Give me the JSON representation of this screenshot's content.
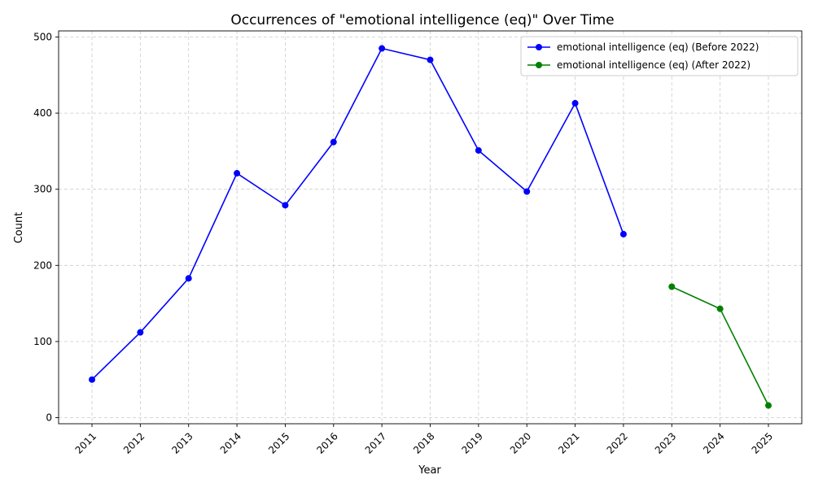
{
  "chart_data": {
    "type": "line",
    "title": "Occurrences of \"emotional intelligence (eq)\" Over Time",
    "xlabel": "Year",
    "ylabel": "Count",
    "x": [
      "2011",
      "2012",
      "2013",
      "2014",
      "2015",
      "2016",
      "2017",
      "2018",
      "2019",
      "2020",
      "2021",
      "2022",
      "2023",
      "2024",
      "2025"
    ],
    "ylim": [
      -8,
      508
    ],
    "yticks": [
      0,
      100,
      200,
      300,
      400,
      500
    ],
    "grid": true,
    "legend_position": "top-right",
    "series": [
      {
        "name": "emotional intelligence (eq) (Before 2022)",
        "color": "#0000ff",
        "x": [
          "2011",
          "2012",
          "2013",
          "2014",
          "2015",
          "2016",
          "2017",
          "2018",
          "2019",
          "2020",
          "2021",
          "2022"
        ],
        "values": [
          50,
          112,
          183,
          321,
          279,
          362,
          485,
          470,
          351,
          297,
          413,
          241
        ]
      },
      {
        "name": "emotional intelligence (eq) (After 2022)",
        "color": "#008000",
        "x": [
          "2023",
          "2024",
          "2025"
        ],
        "values": [
          172,
          143,
          16
        ]
      }
    ]
  }
}
